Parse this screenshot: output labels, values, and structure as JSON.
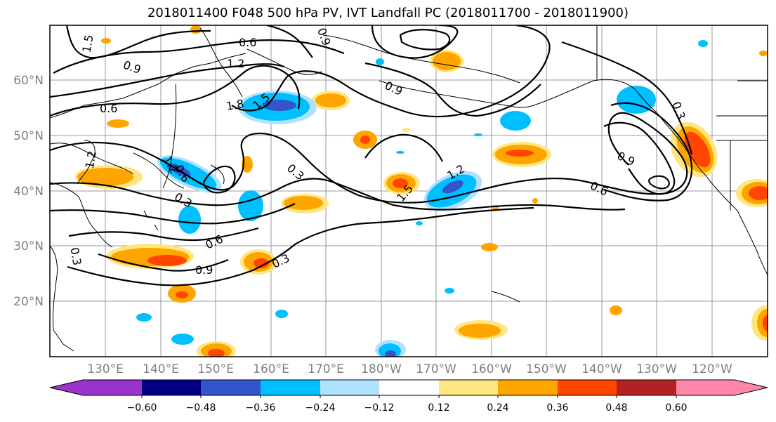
{
  "title": "2018011400 F048 500 hPa PV, IVT Landfall PC (2018011700 - 2018011900)",
  "map": {
    "lat_labels": [
      "60°N",
      "50°N",
      "40°N",
      "30°N",
      "20°N"
    ],
    "lon_labels": [
      "130°E",
      "140°E",
      "150°E",
      "160°E",
      "170°E",
      "180°W",
      "170°W",
      "160°W",
      "150°W",
      "140°W",
      "130°W",
      "120°W"
    ],
    "contour_labels": [
      "1.5",
      "0.6",
      "0.9",
      "1.2",
      "0.9",
      "0.6",
      "1.8",
      "1.5",
      "0.9",
      "0.3",
      "1.2",
      "1.2",
      "0.3",
      "0.6",
      "0.3",
      "1.2",
      "1.5",
      "0.3",
      "0.6",
      "0.9",
      "0.3",
      "0.9",
      "0.6"
    ]
  },
  "colorbar": {
    "tick_labels": [
      "−0.60",
      "−0.48",
      "−0.36",
      "−0.24",
      "−0.12",
      "0.12",
      "0.24",
      "0.36",
      "0.48",
      "0.60"
    ],
    "colors": [
      "#9933cc",
      "#000080",
      "#3355cc",
      "#00bfff",
      "#b0e2ff",
      "#ffffff",
      "#ffe680",
      "#ffa500",
      "#ff4500",
      "#b22222",
      "#ff88aa"
    ]
  },
  "fill_colors": {
    "light_blue": "#b0e2ff",
    "blue": "#00bfff",
    "mid_blue": "#3355cc",
    "yellow": "#ffe680",
    "orange": "#ffa500",
    "red": "#ff4500"
  }
}
